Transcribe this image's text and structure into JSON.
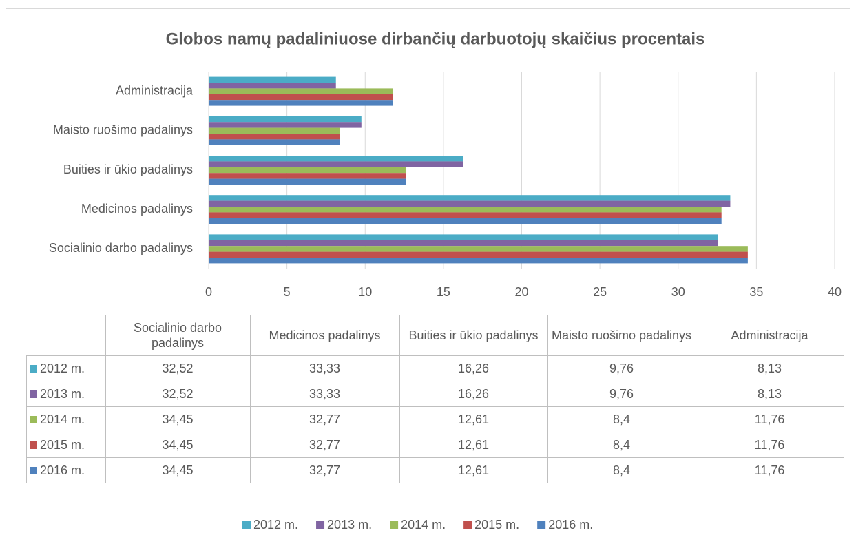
{
  "chart_data": {
    "type": "bar",
    "orientation": "horizontal",
    "title": "Globos namų padaliniuose dirbančių darbuotojų skaičius procentais",
    "categories": [
      "Socialinio darbo padalinys",
      "Medicinos padalinys",
      "Buities ir ūkio padalinys",
      "Maisto ruošimo padalinys",
      "Administracija"
    ],
    "series": [
      {
        "name": "2012 m.",
        "color": "#4bacc6",
        "values": [
          32.52,
          33.33,
          16.26,
          9.76,
          8.13
        ],
        "value_labels": [
          "32,52",
          "33,33",
          "16,26",
          "9,76",
          "8,13"
        ]
      },
      {
        "name": "2013 m.",
        "color": "#8064a2",
        "values": [
          32.52,
          33.33,
          16.26,
          9.76,
          8.13
        ],
        "value_labels": [
          "32,52",
          "33,33",
          "16,26",
          "9,76",
          "8,13"
        ]
      },
      {
        "name": "2014 m.",
        "color": "#9bbb59",
        "values": [
          34.45,
          32.77,
          12.61,
          8.4,
          11.76
        ],
        "value_labels": [
          "34,45",
          "32,77",
          "12,61",
          "8,4",
          "11,76"
        ]
      },
      {
        "name": "2015 m.",
        "color": "#c0504d",
        "values": [
          34.45,
          32.77,
          12.61,
          8.4,
          11.76
        ],
        "value_labels": [
          "34,45",
          "32,77",
          "12,61",
          "8,4",
          "11,76"
        ]
      },
      {
        "name": "2016 m.",
        "color": "#4f81bd",
        "values": [
          34.45,
          32.77,
          12.61,
          8.4,
          11.76
        ],
        "value_labels": [
          "34,45",
          "32,77",
          "12,61",
          "8,4",
          "11,76"
        ]
      }
    ],
    "xlim": [
      0,
      40
    ],
    "xticks": [
      0,
      5,
      10,
      15,
      20,
      25,
      30,
      35,
      40
    ],
    "grid": true,
    "legend": "bottom",
    "data_table": true
  }
}
